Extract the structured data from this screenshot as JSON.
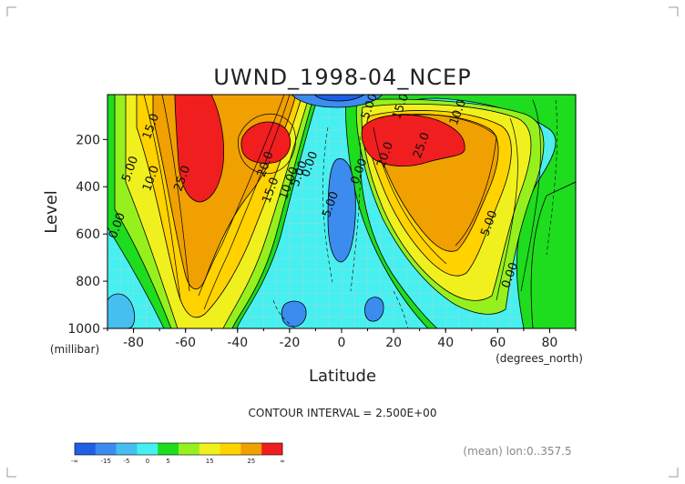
{
  "chart_data": {
    "type": "contour",
    "title": "UWND_1998-04_NCEP",
    "xlabel": "Latitude",
    "ylabel": "Level",
    "x_unit": "(degrees_north)",
    "y_unit": "(millibar)",
    "xlim": [
      -90,
      90
    ],
    "ylim": [
      1000,
      10
    ],
    "x_ticks": [
      "-80",
      "-60",
      "-40",
      "-20",
      "0",
      "20",
      "40",
      "60",
      "80"
    ],
    "x_tick_values": [
      -80,
      -60,
      -40,
      -20,
      0,
      20,
      40,
      60,
      80
    ],
    "y_ticks": [
      "200",
      "400",
      "600",
      "800",
      "1000"
    ],
    "y_tick_values": [
      200,
      400,
      600,
      800,
      1000
    ],
    "contour_interval_label": "CONTOUR INTERVAL = 2.500E+00",
    "contour_interval": 2.5,
    "footnote": "(mean) lon:0..357.5",
    "colorbar": {
      "labels": [
        "-∞",
        "-15",
        "-5",
        "0",
        "5",
        "15",
        "25",
        "∞"
      ],
      "colors": [
        "#1e5fe6",
        "#3c8cf0",
        "#46bef0",
        "#46f0f0",
        "#1edc1e",
        "#96f01e",
        "#f0f01e",
        "#ffd200",
        "#f0a000",
        "#f01e1e"
      ]
    },
    "contour_labels": [
      {
        "text": "15.0",
        "lat": -72,
        "lev": 150
      },
      {
        "text": "5.00",
        "lat": -80,
        "lev": 330
      },
      {
        "text": "10.0",
        "lat": -72,
        "lev": 370
      },
      {
        "text": "25.0",
        "lat": -60,
        "lev": 370
      },
      {
        "text": "20.0",
        "lat": -28,
        "lev": 310
      },
      {
        "text": "15.0",
        "lat": -26,
        "lev": 420
      },
      {
        "text": "10.00",
        "lat": -19,
        "lev": 390
      },
      {
        "text": "5.00",
        "lat": -15,
        "lev": 350
      },
      {
        "text": "0.00",
        "lat": -11,
        "lev": 310
      },
      {
        "text": "5.00",
        "lat": -3,
        "lev": 480
      },
      {
        "text": "0.00",
        "lat": 8,
        "lev": 340
      },
      {
        "text": "0.00",
        "lat": -85,
        "lev": 570
      },
      {
        "text": "5.00",
        "lat": 12,
        "lev": 65
      },
      {
        "text": "15.0",
        "lat": 24,
        "lev": 65
      },
      {
        "text": "10.0",
        "lat": 46,
        "lev": 90
      },
      {
        "text": "20.0",
        "lat": 18,
        "lev": 270
      },
      {
        "text": "25.0",
        "lat": 32,
        "lev": 230
      },
      {
        "text": "5.00",
        "lat": 58,
        "lev": 560
      },
      {
        "text": "0.00",
        "lat": 66,
        "lev": 780
      }
    ]
  }
}
